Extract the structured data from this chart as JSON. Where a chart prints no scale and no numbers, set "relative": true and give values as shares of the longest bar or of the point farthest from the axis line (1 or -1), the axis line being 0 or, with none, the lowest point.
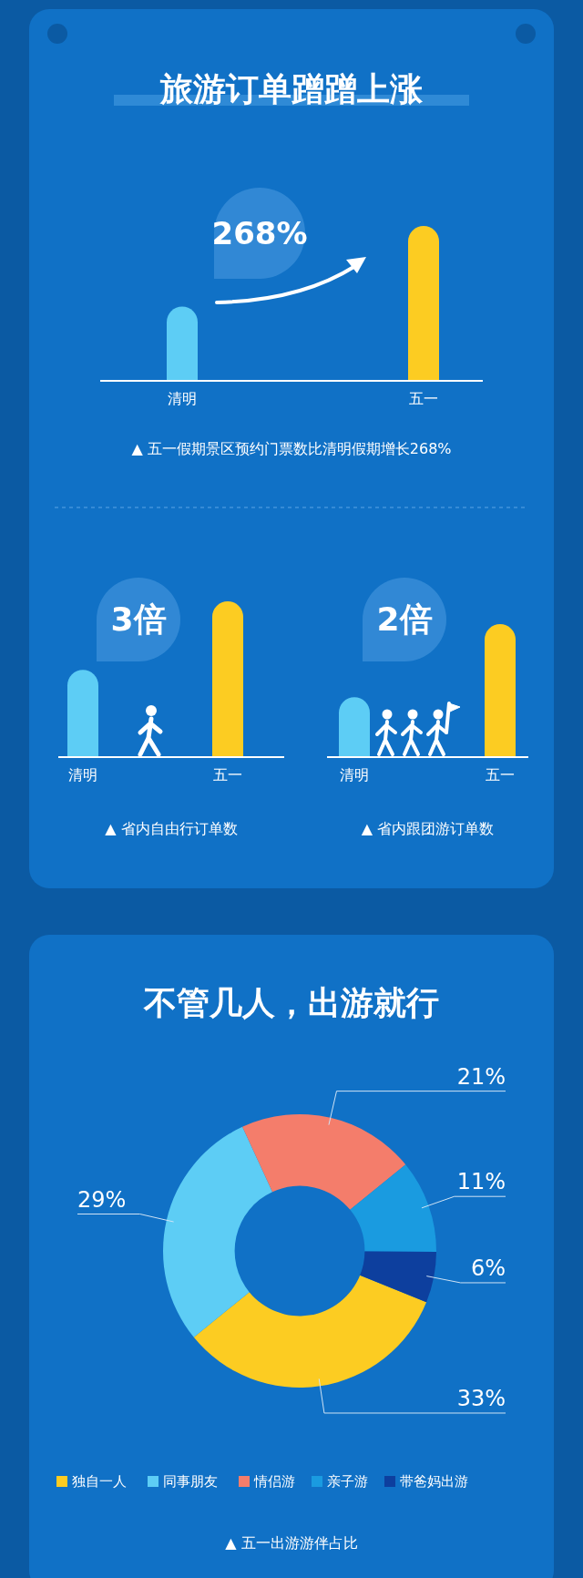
{
  "chart_data": [
    {
      "type": "bar",
      "title": "旅游订单蹭蹭上涨",
      "categories": [
        "清明",
        "五一"
      ],
      "values": [
        0.48,
        1
      ],
      "colors": [
        "#5dcdf5",
        "#fccc22"
      ],
      "relative": true,
      "annotations": [
        "268%",
        "▲ 五一假期景区预约门票数比清明假期增长268%"
      ]
    },
    {
      "type": "bar",
      "categories": [
        "清明",
        "五一"
      ],
      "values": [
        0.56,
        1
      ],
      "colors": [
        "#5dcdf5",
        "#fccc22"
      ],
      "relative": true,
      "annotations": [
        "3倍",
        "▲ 省内自由行订单数"
      ]
    },
    {
      "type": "bar",
      "categories": [
        "清明",
        "五一"
      ],
      "values": [
        0.45,
        1
      ],
      "colors": [
        "#5dcdf5",
        "#fccc22"
      ],
      "relative": true,
      "annotations": [
        "2倍",
        "▲ 省内跟团游订单数"
      ]
    },
    {
      "type": "donut",
      "title": "不管几人，出游就行",
      "categories": [
        "独自一人",
        "同事朋友",
        "情侣游",
        "亲子游",
        "带爸妈出游"
      ],
      "values": [
        33,
        29,
        21,
        11,
        6
      ],
      "value_labels": [
        "33%",
        "29%",
        "21%",
        "11%",
        "6%"
      ],
      "colors": [
        "#fccc22",
        "#5dcdf5",
        "#f47d6b",
        "#1a9be0",
        "#0d3f9e"
      ],
      "data_labels": true,
      "legend": "bottom",
      "annotations": [
        "▲ 五一出游游伴占比"
      ]
    }
  ]
}
